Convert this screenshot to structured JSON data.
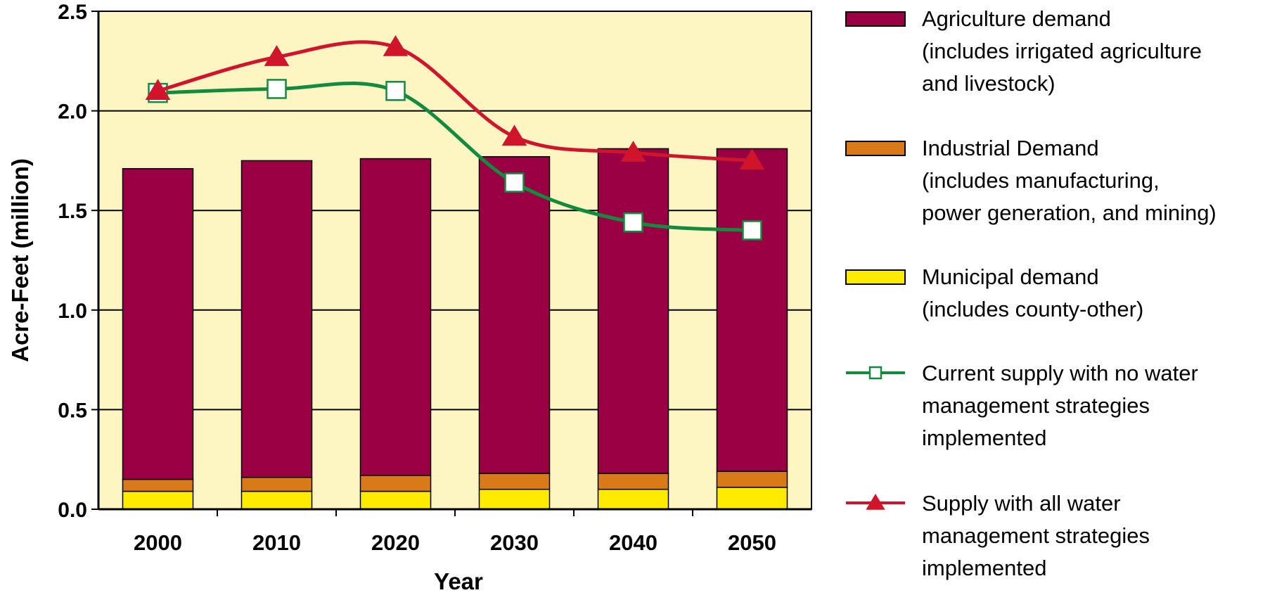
{
  "chart_data": {
    "type": "bar",
    "stacked": true,
    "title": "",
    "xlabel": "Year",
    "ylabel": "Acre-Feet (million)",
    "ylim": [
      0,
      2.5
    ],
    "yticks": [
      "0.0",
      "0.5",
      "1.0",
      "1.5",
      "2.0",
      "2.5"
    ],
    "grid": true,
    "legend_position": "right",
    "plot_background": "#fdf6c3",
    "categories": [
      "2000",
      "2010",
      "2020",
      "2030",
      "2040",
      "2050"
    ],
    "series": [
      {
        "name": "Municipal demand (includes county-other)",
        "legend_lines": [
          "Municipal demand",
          "(includes county-other)"
        ],
        "kind": "bar",
        "color": "#ffeb00",
        "values": [
          0.09,
          0.09,
          0.09,
          0.1,
          0.1,
          0.11
        ]
      },
      {
        "name": "Industrial Demand (includes manufacturing, power generation, and mining)",
        "legend_lines": [
          "Industrial Demand",
          "(includes manufacturing,",
          "power generation, and mining)"
        ],
        "kind": "bar",
        "color": "#d87a1a",
        "values": [
          0.06,
          0.07,
          0.08,
          0.08,
          0.08,
          0.08
        ]
      },
      {
        "name": "Agriculture demand (includes irrigated agriculture and livestock)",
        "legend_lines": [
          "Agriculture demand",
          "(includes irrigated agriculture",
          "and livestock)"
        ],
        "kind": "bar",
        "color": "#990044",
        "values": [
          1.56,
          1.59,
          1.59,
          1.59,
          1.63,
          1.62
        ]
      },
      {
        "name": "Current supply with no water management strategies implemented",
        "legend_lines": [
          "Current supply with no water",
          "management strategies",
          "implemented"
        ],
        "kind": "line",
        "marker": "square",
        "color": "#138a3e",
        "values": [
          2.09,
          2.11,
          2.1,
          1.64,
          1.44,
          1.4
        ]
      },
      {
        "name": "Supply with all water management strategies implemented",
        "legend_lines": [
          "Supply with all water",
          "management strategies",
          "implemented"
        ],
        "kind": "line",
        "marker": "triangle",
        "color": "#d0142c",
        "values": [
          2.1,
          2.27,
          2.32,
          1.87,
          1.79,
          1.75
        ]
      }
    ]
  }
}
